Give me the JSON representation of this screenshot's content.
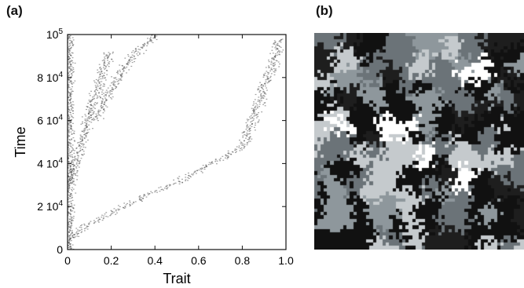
{
  "panels": [
    {
      "label": "(a)"
    },
    {
      "label": "(b)"
    }
  ],
  "chart_data": [
    {
      "type": "scatter",
      "xlabel": "Trait",
      "ylabel": "Time",
      "xlim": [
        0,
        1
      ],
      "ylim": [
        0,
        100000
      ],
      "x_ticks": [
        {
          "value": 0,
          "label": "0"
        },
        {
          "value": 0.2,
          "label": "0.2"
        },
        {
          "value": 0.4,
          "label": "0.4"
        },
        {
          "value": 0.6,
          "label": "0.6"
        },
        {
          "value": 0.8,
          "label": "0.8"
        },
        {
          "value": 1.0,
          "label": "1.0"
        }
      ],
      "y_ticks": [
        {
          "value": 0,
          "mantissa": "0",
          "exponent": ""
        },
        {
          "value": 20000,
          "mantissa": "2 10",
          "exponent": "4"
        },
        {
          "value": 40000,
          "mantissa": "4 10",
          "exponent": "4"
        },
        {
          "value": 60000,
          "mantissa": "6 10",
          "exponent": "4"
        },
        {
          "value": 80000,
          "mantissa": "8 10",
          "exponent": "4"
        },
        {
          "value": 100000,
          "mantissa": "10",
          "exponent": "5"
        }
      ],
      "grid": false,
      "mark_color": "#2a2a2a",
      "series": [
        {
          "x": [
            0.01,
            0.01,
            0.01,
            0.01,
            0.01,
            0.01,
            0.01
          ],
          "y": [
            0,
            15000,
            30000,
            50000,
            70000,
            85000,
            100000
          ],
          "spread": 0.02
        },
        {
          "x": [
            0.01,
            0.1,
            0.2,
            0.3,
            0.4,
            0.5,
            0.6,
            0.7,
            0.8,
            0.85,
            0.9,
            0.95,
            0.97
          ],
          "y": [
            5000,
            12000,
            17000,
            22000,
            27000,
            31000,
            37000,
            42000,
            48000,
            62000,
            76000,
            88000,
            98000
          ],
          "spread": 0.03
        },
        {
          "x": [
            0.01,
            0.05,
            0.08,
            0.1,
            0.13,
            0.16,
            0.19
          ],
          "y": [
            30000,
            45000,
            55000,
            63000,
            72000,
            82000,
            92000
          ],
          "spread": 0.025
        },
        {
          "x": [
            0.13,
            0.2,
            0.25,
            0.3,
            0.35,
            0.4
          ],
          "y": [
            60000,
            75000,
            83000,
            90000,
            95000,
            100000
          ],
          "spread": 0.03
        }
      ]
    },
    {
      "type": "heatmap",
      "palette": [
        "#111111",
        "#1e1e1e",
        "#6b7378",
        "#8e979c",
        "#c5cacd",
        "#ffffff"
      ]
    }
  ]
}
